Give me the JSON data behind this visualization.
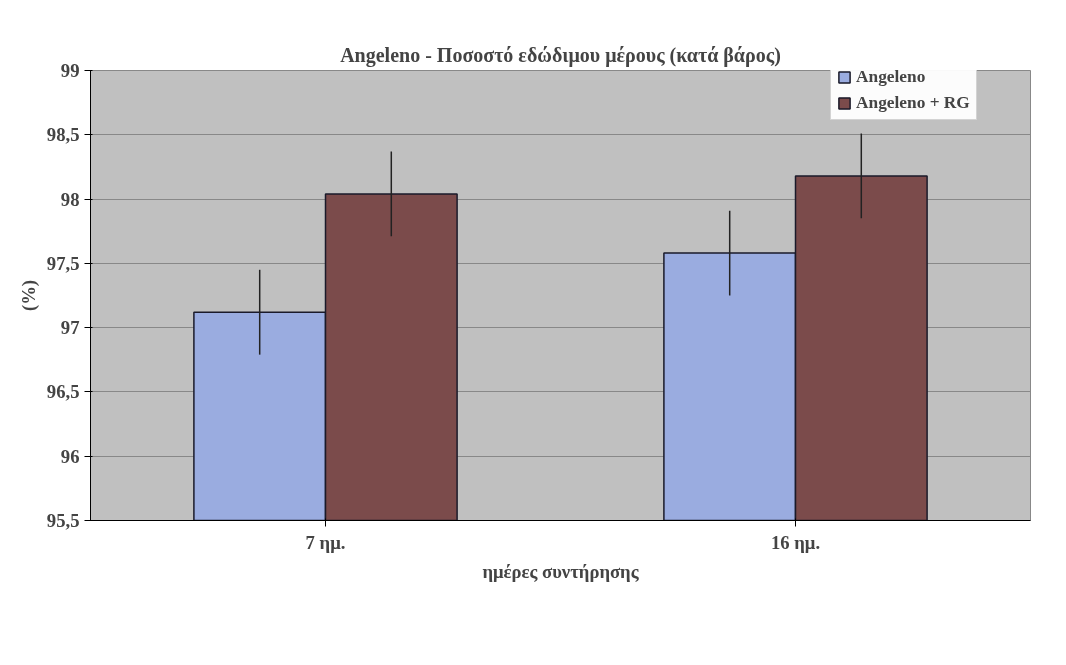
{
  "chart_data": {
    "type": "bar",
    "title": "Angeleno - Ποσοστό εδώδιμου μέρους (κατά βάρος)",
    "xlabel": "ημέρες συντήρησης",
    "ylabel": "(%)",
    "categories": [
      "7 ημ.",
      "16 ημ."
    ],
    "series": [
      {
        "name": "Angeleno",
        "color": "#9aace0",
        "values": [
          97.12,
          97.58
        ],
        "errors": [
          0.33,
          0.33
        ]
      },
      {
        "name": "Angeleno + RG",
        "color": "#7b4b4b",
        "values": [
          98.04,
          98.18
        ],
        "errors": [
          0.33,
          0.33
        ]
      }
    ],
    "ylim": [
      95.5,
      99
    ],
    "yticks": [
      {
        "value": 95.5,
        "label": "95,5"
      },
      96,
      {
        "value": 96.5,
        "label": "96,5"
      },
      97,
      {
        "value": 97.5,
        "label": "97,5"
      },
      98,
      {
        "value": 98.5,
        "label": "98,5"
      },
      99
    ],
    "grid": "y",
    "legend": "top right"
  }
}
